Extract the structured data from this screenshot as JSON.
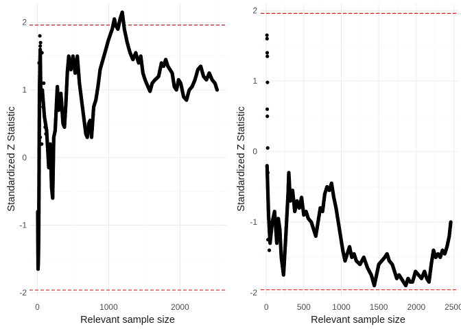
{
  "colors": {
    "points": "#000000",
    "reference_line": "#d40000",
    "grid": "#ebebeb",
    "text": "#4d4d4d",
    "title": "#1a1a1a"
  },
  "chart_data": [
    {
      "type": "scatter",
      "xlabel": "Relevant sample size",
      "ylabel": "Standardized Z Statistic",
      "xlim": [
        -110,
        2650
      ],
      "ylim": [
        -2.05,
        2.28
      ],
      "x_ticks": [
        0,
        1000,
        2000
      ],
      "y_ticks": [
        -2,
        -1,
        0,
        1,
        2
      ],
      "grid": true,
      "reference_lines_y": [
        1.96,
        -1.96
      ],
      "series": [
        {
          "trace": [
            [
              5,
              -0.8
            ],
            [
              10,
              -1.65
            ],
            [
              15,
              -1.5
            ],
            [
              20,
              -1.1
            ],
            [
              30,
              1.0
            ],
            [
              40,
              1.6
            ],
            [
              50,
              0.85
            ],
            [
              70,
              1.0
            ],
            [
              100,
              0.6
            ],
            [
              130,
              0.4
            ],
            [
              160,
              -0.15
            ],
            [
              180,
              0.2
            ],
            [
              200,
              -0.45
            ],
            [
              215,
              -0.6
            ],
            [
              230,
              0.3
            ],
            [
              250,
              0.4
            ],
            [
              280,
              1.05
            ],
            [
              300,
              0.7
            ],
            [
              330,
              0.95
            ],
            [
              360,
              0.5
            ],
            [
              380,
              0.45
            ],
            [
              400,
              0.8
            ],
            [
              420,
              1.25
            ],
            [
              440,
              1.5
            ],
            [
              470,
              1.3
            ],
            [
              500,
              1.5
            ],
            [
              530,
              1.25
            ],
            [
              560,
              1.5
            ],
            [
              590,
              1.1
            ],
            [
              620,
              0.85
            ],
            [
              650,
              0.6
            ],
            [
              680,
              0.35
            ],
            [
              700,
              0.3
            ],
            [
              720,
              0.5
            ],
            [
              740,
              0.55
            ],
            [
              760,
              0.3
            ],
            [
              790,
              0.75
            ],
            [
              820,
              0.85
            ],
            [
              850,
              1.05
            ],
            [
              880,
              1.3
            ],
            [
              920,
              1.45
            ],
            [
              960,
              1.6
            ],
            [
              1000,
              1.75
            ],
            [
              1050,
              1.9
            ],
            [
              1080,
              2.05
            ],
            [
              1100,
              1.95
            ],
            [
              1130,
              1.9
            ],
            [
              1160,
              2.05
            ],
            [
              1190,
              2.15
            ],
            [
              1220,
              1.9
            ],
            [
              1260,
              1.7
            ],
            [
              1300,
              1.55
            ],
            [
              1340,
              1.45
            ],
            [
              1380,
              1.55
            ],
            [
              1420,
              1.4
            ],
            [
              1450,
              1.5
            ],
            [
              1480,
              1.25
            ],
            [
              1510,
              1.15
            ],
            [
              1550,
              1.05
            ],
            [
              1580,
              0.98
            ],
            [
              1610,
              1.1
            ],
            [
              1650,
              1.15
            ],
            [
              1700,
              1.2
            ],
            [
              1740,
              1.4
            ],
            [
              1770,
              1.35
            ],
            [
              1800,
              1.45
            ],
            [
              1830,
              1.35
            ],
            [
              1860,
              1.3
            ],
            [
              1890,
              1.25
            ],
            [
              1920,
              1.05
            ],
            [
              1950,
              1.0
            ],
            [
              1980,
              1.15
            ],
            [
              2010,
              1.1
            ],
            [
              2050,
              0.9
            ],
            [
              2090,
              0.85
            ],
            [
              2130,
              1.0
            ],
            [
              2170,
              1.05
            ],
            [
              2210,
              1.15
            ],
            [
              2250,
              1.3
            ],
            [
              2290,
              1.35
            ],
            [
              2330,
              1.2
            ],
            [
              2370,
              1.15
            ],
            [
              2410,
              1.25
            ],
            [
              2450,
              1.15
            ],
            [
              2490,
              1.1
            ],
            [
              2520,
              1.0
            ]
          ],
          "scatter": [
            [
              25,
              1.4
            ],
            [
              35,
              1.8
            ],
            [
              40,
              1.65
            ],
            [
              45,
              1.7
            ],
            [
              65,
              1.55
            ],
            [
              80,
              0.75
            ],
            [
              60,
              0.2
            ],
            [
              40,
              0.3
            ],
            [
              90,
              1.1
            ],
            [
              110,
              0.45
            ],
            [
              120,
              0.35
            ]
          ]
        }
      ]
    },
    {
      "type": "scatter",
      "xlabel": "Relevant sample size",
      "ylabel": "Standardized Z Statistic",
      "xlim": [
        -75,
        2560
      ],
      "ylim": [
        -2.05,
        2.1
      ],
      "x_ticks": [
        0,
        500,
        1000,
        1500,
        2000,
        2500
      ],
      "y_ticks": [
        -2,
        -1,
        0,
        1,
        2
      ],
      "grid": true,
      "reference_lines_y": [
        1.96,
        -1.96
      ],
      "series": [
        {
          "trace": [
            [
              10,
              -0.2
            ],
            [
              30,
              -0.9
            ],
            [
              50,
              -1.3
            ],
            [
              80,
              -1.0
            ],
            [
              110,
              -0.85
            ],
            [
              140,
              -1.3
            ],
            [
              160,
              -0.95
            ],
            [
              180,
              -1.1
            ],
            [
              200,
              -1.5
            ],
            [
              230,
              -1.75
            ],
            [
              260,
              -1.2
            ],
            [
              290,
              -0.6
            ],
            [
              300,
              -0.3
            ],
            [
              320,
              -0.7
            ],
            [
              350,
              -0.55
            ],
            [
              380,
              -0.85
            ],
            [
              410,
              -0.7
            ],
            [
              440,
              -0.8
            ],
            [
              470,
              -0.65
            ],
            [
              500,
              -0.9
            ],
            [
              530,
              -0.85
            ],
            [
              560,
              -0.95
            ],
            [
              600,
              -1.0
            ],
            [
              630,
              -1.1
            ],
            [
              660,
              -1.2
            ],
            [
              690,
              -1.0
            ],
            [
              720,
              -0.8
            ],
            [
              750,
              -0.85
            ],
            [
              780,
              -0.6
            ],
            [
              810,
              -0.5
            ],
            [
              840,
              -0.55
            ],
            [
              870,
              -0.45
            ],
            [
              900,
              -0.65
            ],
            [
              930,
              -0.8
            ],
            [
              960,
              -1.0
            ],
            [
              990,
              -1.2
            ],
            [
              1020,
              -1.4
            ],
            [
              1050,
              -1.55
            ],
            [
              1080,
              -1.45
            ],
            [
              1110,
              -1.35
            ],
            [
              1140,
              -1.5
            ],
            [
              1170,
              -1.45
            ],
            [
              1200,
              -1.55
            ],
            [
              1250,
              -1.6
            ],
            [
              1300,
              -1.5
            ],
            [
              1350,
              -1.65
            ],
            [
              1400,
              -1.75
            ],
            [
              1440,
              -1.9
            ],
            [
              1470,
              -1.75
            ],
            [
              1500,
              -1.6
            ],
            [
              1540,
              -1.55
            ],
            [
              1580,
              -1.5
            ],
            [
              1610,
              -1.45
            ],
            [
              1640,
              -1.55
            ],
            [
              1680,
              -1.6
            ],
            [
              1710,
              -1.7
            ],
            [
              1740,
              -1.8
            ],
            [
              1770,
              -1.75
            ],
            [
              1800,
              -1.8
            ],
            [
              1830,
              -1.85
            ],
            [
              1860,
              -1.9
            ],
            [
              1890,
              -1.8
            ],
            [
              1920,
              -1.85
            ],
            [
              1950,
              -1.85
            ],
            [
              1990,
              -1.7
            ],
            [
              2030,
              -1.75
            ],
            [
              2070,
              -1.8
            ],
            [
              2110,
              -1.7
            ],
            [
              2140,
              -1.8
            ],
            [
              2170,
              -1.85
            ],
            [
              2200,
              -1.6
            ],
            [
              2230,
              -1.4
            ],
            [
              2260,
              -1.5
            ],
            [
              2290,
              -1.45
            ],
            [
              2320,
              -1.5
            ],
            [
              2350,
              -1.4
            ],
            [
              2380,
              -1.45
            ],
            [
              2410,
              -1.35
            ],
            [
              2440,
              -1.2
            ],
            [
              2460,
              -1.0
            ]
          ],
          "scatter": [
            [
              8,
              1.65
            ],
            [
              10,
              1.6
            ],
            [
              12,
              1.4
            ],
            [
              14,
              1.35
            ],
            [
              16,
              0.98
            ],
            [
              12,
              0.6
            ],
            [
              14,
              0.5
            ],
            [
              18,
              0.05
            ],
            [
              20,
              -0.3
            ],
            [
              22,
              -1.25
            ],
            [
              40,
              -1.4
            ],
            [
              60,
              -1.05
            ],
            [
              150,
              -1.2
            ]
          ]
        }
      ]
    }
  ]
}
